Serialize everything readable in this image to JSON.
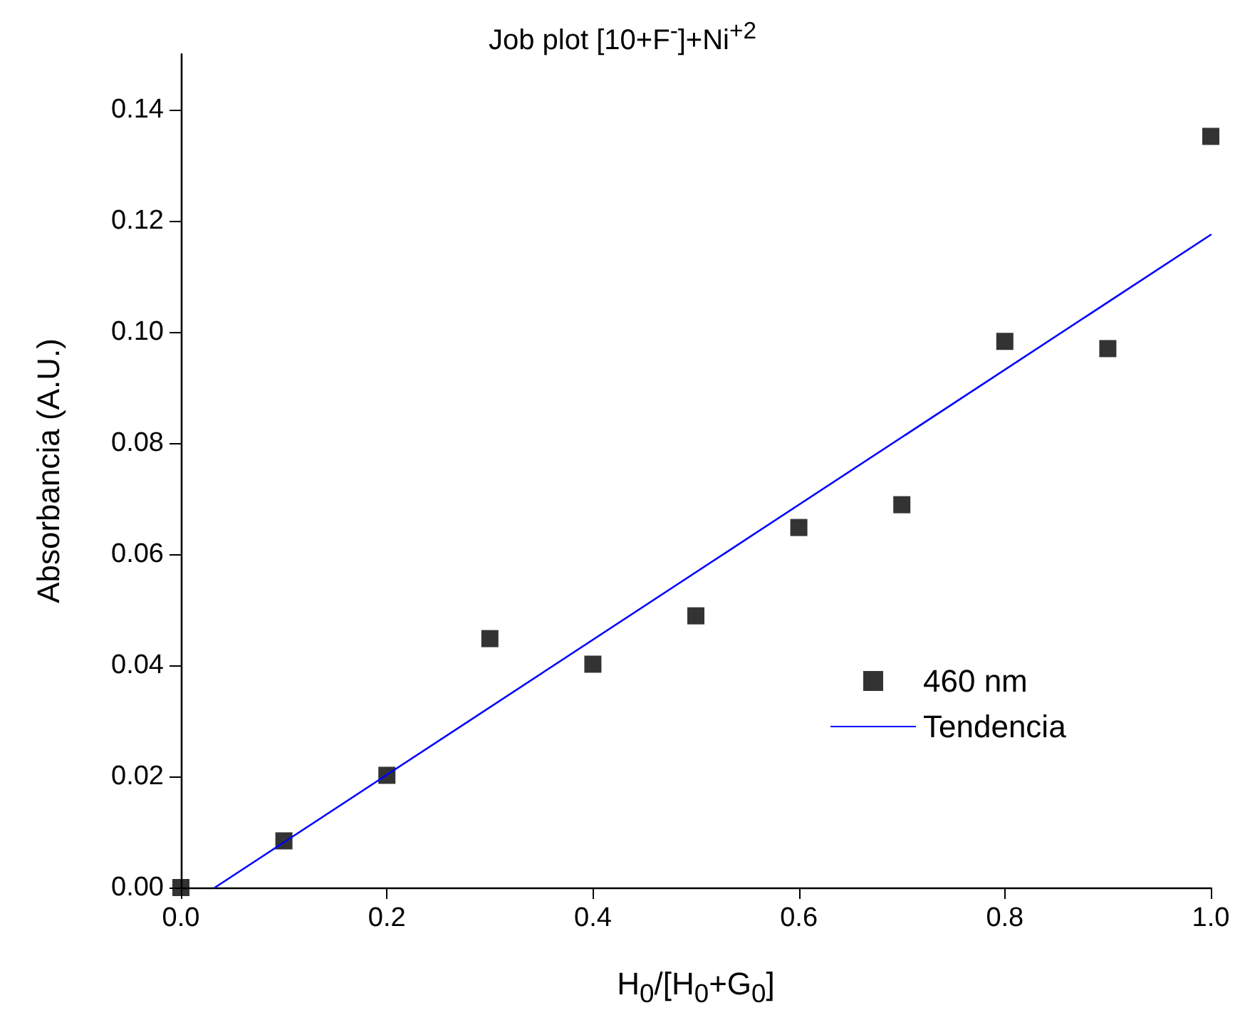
{
  "chart_data": {
    "type": "scatter",
    "title": "Job plot [10+F$^{-}$]+Ni$^{+2}$",
    "xlabel": "H$_{0}$/[H$_{0}$+G$_{0}$]",
    "ylabel": "Absorbancia (A.U.)",
    "series": [
      {
        "name": "460 nm",
        "type": "scatter",
        "color": "#000000",
        "marker": "square",
        "x": [
          0,
          0.1,
          0.2,
          0.3,
          0.4,
          0.5,
          0.6,
          0.7,
          0.8,
          0.9,
          1.0
        ],
        "values": [
          0.0,
          0.0084,
          0.0202,
          0.0448,
          0.0402,
          0.0489,
          0.0648,
          0.0689,
          0.0983,
          0.097,
          0.1352
        ]
      },
      {
        "name": "Tendencia",
        "type": "line",
        "color": "#0000ff",
        "marker": "none",
        "line_style": "solid",
        "x": [
          0.033,
          1.0
        ],
        "values": [
          0,
          0.1175
        ]
      }
    ],
    "xlim": [
      0,
      1
    ],
    "xticks": [
      {
        "value": 0,
        "label": "0.0"
      },
      {
        "value": 0.2,
        "label": "0.2"
      },
      {
        "value": 0.4,
        "label": "0.4"
      },
      {
        "value": 0.6,
        "label": "0.6"
      },
      {
        "value": 0.8,
        "label": "0.8"
      },
      {
        "value": 1,
        "label": "1.0"
      }
    ],
    "ylim": [
      0,
      0.15
    ],
    "yticks": [
      {
        "value": 0,
        "label": "0.00"
      },
      {
        "value": 0.02,
        "label": "0.02"
      },
      {
        "value": 0.04,
        "label": "0.04"
      },
      {
        "value": 0.06,
        "label": "0.06"
      },
      {
        "value": 0.08,
        "label": "0.08"
      },
      {
        "value": 0.1,
        "label": "0.10"
      },
      {
        "value": 0.12,
        "label": "0.12"
      },
      {
        "value": 0.14,
        "label": "0.14"
      }
    ],
    "grid": false,
    "legend": "right"
  }
}
